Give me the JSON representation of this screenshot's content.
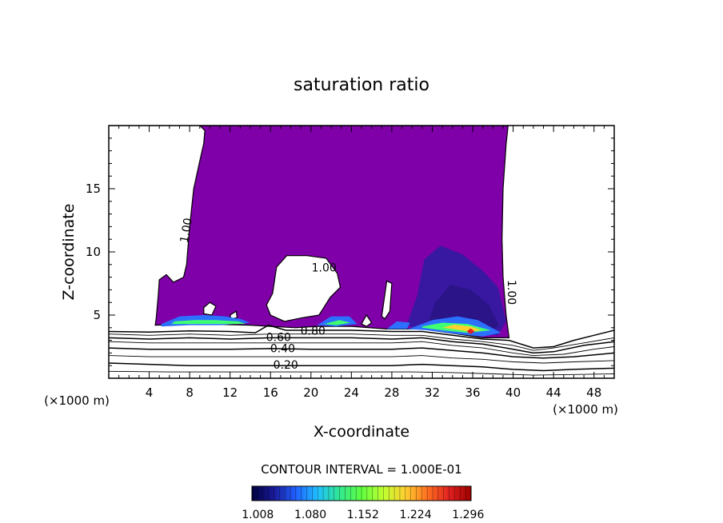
{
  "chart_data": {
    "type": "heatmap",
    "title": "saturation ratio",
    "xlabel": "X-coordinate",
    "ylabel": "Z-coordinate",
    "x_unit_left": "(×1000 m)",
    "x_unit_right": "(×1000 m)",
    "xlim": [
      0,
      50
    ],
    "ylim": [
      0,
      20
    ],
    "x_ticks": [
      4,
      8,
      12,
      16,
      20,
      24,
      28,
      32,
      36,
      40,
      44,
      48
    ],
    "y_ticks": [
      5,
      10,
      15
    ],
    "contour_interval_text": "CONTOUR INTERVAL = 1.000E-01",
    "colorbar": {
      "min": 1.0,
      "max": 1.3,
      "tick_labels": [
        "1.008",
        "1.080",
        "1.152",
        "1.224",
        "1.296"
      ],
      "colors": [
        "#000040",
        "#1a1a99",
        "#2060ff",
        "#20c0ff",
        "#30e890",
        "#60ff40",
        "#c0ff30",
        "#ffd030",
        "#ff7020",
        "#e02020",
        "#a00000"
      ]
    },
    "supersaturated_fill_color": "#7f00a8",
    "contour_labels": [
      {
        "text": "1.00",
        "x": 7.7,
        "y": 11.7,
        "rotate": -80
      },
      {
        "text": "1.00",
        "x": 21.3,
        "y": 8.7,
        "rotate": 0
      },
      {
        "text": "1.00",
        "x": 39.8,
        "y": 6.8,
        "rotate": 90
      },
      {
        "text": "0.80",
        "x": 20.2,
        "y": 3.7,
        "rotate": 0
      },
      {
        "text": "0.60",
        "x": 16.8,
        "y": 3.2,
        "rotate": 0
      },
      {
        "text": "0.40",
        "x": 17.2,
        "y": 2.3,
        "rotate": 0
      },
      {
        "text": "0.20",
        "x": 17.5,
        "y": 1.0,
        "rotate": 0
      }
    ],
    "region_outline": [
      [
        0.0,
        20.0
      ],
      [
        9.0,
        20.0
      ],
      [
        9.5,
        19.6
      ],
      [
        9.4,
        18.6
      ],
      [
        9.0,
        17.2
      ],
      [
        8.4,
        15.0
      ],
      [
        8.0,
        12.0
      ],
      [
        7.7,
        9.0
      ],
      [
        7.4,
        8.0
      ],
      [
        6.4,
        7.6
      ],
      [
        5.7,
        8.2
      ],
      [
        5.0,
        7.8
      ],
      [
        4.9,
        6.6
      ],
      [
        4.7,
        4.8
      ],
      [
        4.6,
        4.2
      ],
      [
        9.0,
        4.3
      ],
      [
        14.0,
        4.2
      ],
      [
        16.0,
        4.1
      ],
      [
        18.5,
        4.0
      ],
      [
        20.5,
        4.1
      ],
      [
        24.0,
        4.1
      ],
      [
        27.5,
        3.9
      ],
      [
        31.0,
        3.9
      ],
      [
        34.5,
        3.5
      ],
      [
        37.0,
        3.2
      ],
      [
        39.6,
        3.2
      ],
      [
        39.3,
        5.0
      ],
      [
        39.0,
        8.0
      ],
      [
        38.9,
        11.0
      ],
      [
        39.0,
        15.0
      ],
      [
        39.3,
        18.5
      ],
      [
        39.5,
        20.0
      ]
    ],
    "holes": [
      [
        [
          16.2,
          6.7
        ],
        [
          16.6,
          8.8
        ],
        [
          17.6,
          9.7
        ],
        [
          19.6,
          9.7
        ],
        [
          21.5,
          9.5
        ],
        [
          22.6,
          8.3
        ],
        [
          22.9,
          7.2
        ],
        [
          21.9,
          6.4
        ],
        [
          20.8,
          5.0
        ],
        [
          19.2,
          4.8
        ],
        [
          17.4,
          4.5
        ],
        [
          16.0,
          5.0
        ],
        [
          15.6,
          5.8
        ]
      ],
      [
        [
          9.4,
          5.6
        ],
        [
          10.0,
          6.0
        ],
        [
          10.6,
          5.7
        ],
        [
          10.2,
          5.0
        ],
        [
          9.4,
          5.1
        ]
      ],
      [
        [
          12.0,
          5.0
        ],
        [
          12.6,
          5.3
        ],
        [
          12.7,
          4.8
        ],
        [
          12.1,
          4.7
        ]
      ],
      [
        [
          27.0,
          4.9
        ],
        [
          27.5,
          7.7
        ],
        [
          28.0,
          7.5
        ],
        [
          27.8,
          5.3
        ],
        [
          27.3,
          4.7
        ]
      ],
      [
        [
          25.0,
          4.3
        ],
        [
          25.5,
          5.0
        ],
        [
          26.0,
          4.4
        ],
        [
          25.5,
          4.1
        ]
      ]
    ],
    "bands": [
      {
        "color": "#3818a0",
        "points": [
          [
            29.5,
            4.3
          ],
          [
            30.5,
            6.5
          ],
          [
            31.2,
            9.4
          ],
          [
            32.8,
            10.5
          ],
          [
            35.0,
            9.8
          ],
          [
            37.0,
            8.5
          ],
          [
            38.5,
            7.2
          ],
          [
            39.3,
            4.5
          ],
          [
            38.5,
            3.4
          ],
          [
            35.0,
            3.6
          ],
          [
            32.0,
            3.9
          ],
          [
            30.0,
            4.0
          ]
        ]
      },
      {
        "color": "#2a1488",
        "points": [
          [
            31.5,
            4.2
          ],
          [
            32.3,
            6.0
          ],
          [
            33.8,
            7.4
          ],
          [
            35.8,
            7.0
          ],
          [
            37.6,
            5.8
          ],
          [
            38.6,
            4.2
          ],
          [
            37.5,
            3.4
          ],
          [
            35.0,
            3.7
          ],
          [
            32.5,
            4.0
          ]
        ]
      },
      {
        "color": "#2c70ff",
        "points": [
          [
            30.0,
            4.0
          ],
          [
            32.0,
            4.6
          ],
          [
            34.5,
            4.9
          ],
          [
            36.5,
            4.6
          ],
          [
            38.8,
            3.6
          ],
          [
            37.0,
            3.3
          ],
          [
            34.5,
            3.5
          ],
          [
            31.5,
            3.8
          ],
          [
            29.5,
            3.9
          ]
        ]
      },
      {
        "color": "#2c70ff",
        "points": [
          [
            5.2,
            4.3
          ],
          [
            7.0,
            4.9
          ],
          [
            9.5,
            5.0
          ],
          [
            11.5,
            4.9
          ],
          [
            13.0,
            4.7
          ],
          [
            14.0,
            4.4
          ],
          [
            11.0,
            4.2
          ],
          [
            8.0,
            4.2
          ],
          [
            5.2,
            4.1
          ]
        ]
      },
      {
        "color": "#2c70ff",
        "points": [
          [
            20.6,
            4.2
          ],
          [
            22.0,
            4.9
          ],
          [
            23.8,
            4.9
          ],
          [
            24.6,
            4.3
          ],
          [
            22.5,
            4.1
          ]
        ]
      },
      {
        "color": "#2c70ff",
        "points": [
          [
            27.5,
            3.9
          ],
          [
            28.5,
            4.5
          ],
          [
            29.8,
            4.4
          ],
          [
            29.5,
            3.9
          ]
        ]
      },
      {
        "color": "#40ff70",
        "points": [
          [
            6.5,
            4.5
          ],
          [
            8.5,
            4.6
          ],
          [
            10.5,
            4.6
          ],
          [
            12.8,
            4.5
          ],
          [
            13.6,
            4.3
          ],
          [
            11.0,
            4.3
          ],
          [
            8.0,
            4.3
          ],
          [
            6.2,
            4.3
          ]
        ]
      },
      {
        "color": "#40ff70",
        "points": [
          [
            21.3,
            4.3
          ],
          [
            22.8,
            4.6
          ],
          [
            23.9,
            4.4
          ],
          [
            22.5,
            4.2
          ]
        ]
      },
      {
        "color": "#40ff70",
        "points": [
          [
            31.0,
            4.1
          ],
          [
            33.0,
            4.4
          ],
          [
            35.5,
            4.3
          ],
          [
            37.8,
            3.8
          ],
          [
            35.5,
            3.6
          ],
          [
            33.0,
            3.8
          ],
          [
            31.0,
            4.0
          ]
        ]
      },
      {
        "color": "#ffd030",
        "points": [
          [
            33.0,
            4.0
          ],
          [
            34.2,
            4.25
          ],
          [
            35.8,
            4.1
          ],
          [
            36.9,
            3.8
          ],
          [
            35.6,
            3.7
          ],
          [
            34.0,
            3.9
          ]
        ]
      },
      {
        "color": "#e02020",
        "points": [
          [
            35.4,
            3.7
          ],
          [
            35.8,
            3.95
          ],
          [
            36.2,
            3.7
          ],
          [
            35.8,
            3.5
          ]
        ]
      }
    ],
    "contours": [
      {
        "level": 0.8,
        "points": [
          [
            0.0,
            3.7
          ],
          [
            4.0,
            3.65
          ],
          [
            8.0,
            3.75
          ],
          [
            12.0,
            3.7
          ],
          [
            14.5,
            3.6
          ],
          [
            15.8,
            4.2
          ],
          [
            17.5,
            3.8
          ],
          [
            20.0,
            3.8
          ],
          [
            24.0,
            3.8
          ],
          [
            28.0,
            3.7
          ],
          [
            31.0,
            3.7
          ],
          [
            34.0,
            3.4
          ],
          [
            37.0,
            3.1
          ],
          [
            39.6,
            3.0
          ],
          [
            42.0,
            2.4
          ],
          [
            44.0,
            2.5
          ],
          [
            46.0,
            3.0
          ],
          [
            48.0,
            3.4
          ],
          [
            50.0,
            3.8
          ]
        ]
      },
      {
        "level": 0.7,
        "points": [
          [
            0.0,
            3.5
          ],
          [
            4.0,
            3.4
          ],
          [
            8.0,
            3.5
          ],
          [
            12.0,
            3.4
          ],
          [
            16.0,
            3.5
          ],
          [
            20.0,
            3.5
          ],
          [
            24.0,
            3.5
          ],
          [
            28.0,
            3.4
          ],
          [
            31.0,
            3.4
          ],
          [
            34.0,
            3.1
          ],
          [
            37.0,
            2.9
          ],
          [
            40.0,
            2.6
          ],
          [
            42.0,
            2.2
          ],
          [
            44.0,
            2.4
          ],
          [
            47.0,
            2.8
          ],
          [
            50.0,
            3.2
          ]
        ]
      },
      {
        "level": 0.6,
        "points": [
          [
            0.0,
            3.2
          ],
          [
            4.0,
            3.1
          ],
          [
            8.0,
            3.2
          ],
          [
            12.0,
            3.1
          ],
          [
            16.0,
            3.2
          ],
          [
            20.0,
            3.2
          ],
          [
            24.0,
            3.2
          ],
          [
            28.0,
            3.1
          ],
          [
            31.0,
            3.2
          ],
          [
            34.0,
            2.9
          ],
          [
            37.0,
            2.7
          ],
          [
            40.0,
            2.3
          ],
          [
            42.0,
            2.0
          ],
          [
            44.0,
            2.1
          ],
          [
            47.0,
            2.6
          ],
          [
            50.0,
            2.9
          ]
        ]
      },
      {
        "level": 0.5,
        "points": [
          [
            0.0,
            2.9
          ],
          [
            4.0,
            2.8
          ],
          [
            8.0,
            2.8
          ],
          [
            12.0,
            2.8
          ],
          [
            16.0,
            2.8
          ],
          [
            20.0,
            2.8
          ],
          [
            24.0,
            2.8
          ],
          [
            28.0,
            2.8
          ],
          [
            31.0,
            2.9
          ],
          [
            34.0,
            2.6
          ],
          [
            37.0,
            2.4
          ],
          [
            40.0,
            2.0
          ],
          [
            42.0,
            1.8
          ],
          [
            45.0,
            1.9
          ],
          [
            48.0,
            2.3
          ],
          [
            50.0,
            2.5
          ]
        ]
      },
      {
        "level": 0.4,
        "points": [
          [
            0.0,
            2.4
          ],
          [
            4.0,
            2.3
          ],
          [
            8.0,
            2.3
          ],
          [
            12.0,
            2.3
          ],
          [
            16.0,
            2.35
          ],
          [
            20.0,
            2.3
          ],
          [
            24.0,
            2.3
          ],
          [
            28.0,
            2.3
          ],
          [
            31.0,
            2.4
          ],
          [
            34.0,
            2.2
          ],
          [
            37.0,
            2.0
          ],
          [
            40.0,
            1.7
          ],
          [
            43.0,
            1.6
          ],
          [
            46.0,
            1.7
          ],
          [
            50.0,
            2.0
          ]
        ]
      },
      {
        "level": 0.3,
        "points": [
          [
            0.0,
            1.8
          ],
          [
            4.0,
            1.7
          ],
          [
            8.0,
            1.7
          ],
          [
            12.0,
            1.7
          ],
          [
            16.0,
            1.7
          ],
          [
            20.0,
            1.7
          ],
          [
            24.0,
            1.7
          ],
          [
            28.0,
            1.7
          ],
          [
            31.0,
            1.8
          ],
          [
            34.0,
            1.6
          ],
          [
            37.0,
            1.5
          ],
          [
            40.0,
            1.3
          ],
          [
            43.0,
            1.2
          ],
          [
            46.0,
            1.3
          ],
          [
            50.0,
            1.4
          ]
        ]
      },
      {
        "level": 0.2,
        "points": [
          [
            0.0,
            1.2
          ],
          [
            4.0,
            1.1
          ],
          [
            8.0,
            1.0
          ],
          [
            12.0,
            1.0
          ],
          [
            16.0,
            1.0
          ],
          [
            20.0,
            1.0
          ],
          [
            24.0,
            1.0
          ],
          [
            28.0,
            1.0
          ],
          [
            31.0,
            1.1
          ],
          [
            34.0,
            1.0
          ],
          [
            37.0,
            0.9
          ],
          [
            40.0,
            0.7
          ],
          [
            43.0,
            0.6
          ],
          [
            46.0,
            0.7
          ],
          [
            50.0,
            0.8
          ]
        ]
      },
      {
        "level": 0.1,
        "points": [
          [
            0.0,
            0.55
          ],
          [
            6.0,
            0.5
          ],
          [
            12.0,
            0.5
          ],
          [
            18.0,
            0.5
          ],
          [
            24.0,
            0.5
          ],
          [
            30.0,
            0.5
          ],
          [
            34.0,
            0.45
          ],
          [
            38.0,
            0.35
          ],
          [
            42.0,
            0.25
          ],
          [
            46.0,
            0.3
          ],
          [
            50.0,
            0.35
          ]
        ]
      }
    ]
  }
}
